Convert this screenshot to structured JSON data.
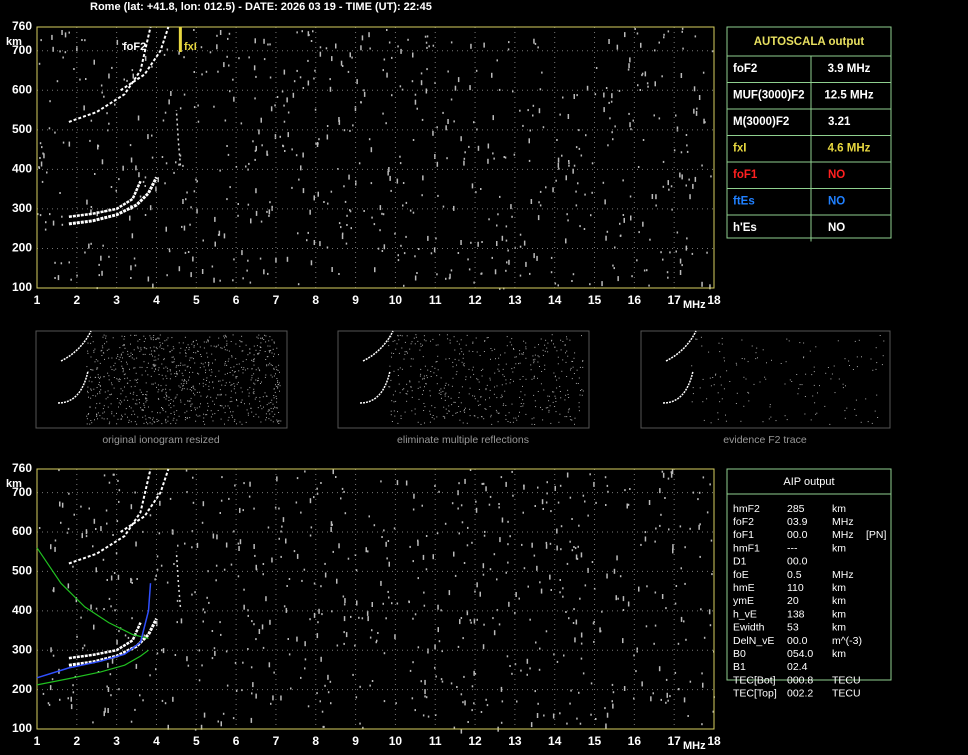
{
  "header": "Rome (lat: +41.8, lon: 012.5) - DATE: 2026 03 19 - TIME (UT): 22:45",
  "top_plot": {
    "y_unit": "km",
    "x_unit": "MHz",
    "xlim": [
      1,
      18
    ],
    "ylim": [
      100,
      760
    ],
    "xticks": [
      1,
      2,
      3,
      4,
      5,
      6,
      7,
      8,
      9,
      10,
      11,
      12,
      13,
      14,
      15,
      16,
      17,
      18
    ],
    "yticks": [
      100,
      200,
      300,
      400,
      500,
      600,
      700,
      760
    ],
    "labels": [
      "foF2",
      "fxI"
    ],
    "grid": true
  },
  "autoscala": {
    "title": "AUTOSCALA output",
    "rows": [
      {
        "name": "foF2",
        "value": "3.9 MHz",
        "color": "#ffffff"
      },
      {
        "name": "MUF(3000)F2",
        "value": "12.5 MHz",
        "color": "#ffffff"
      },
      {
        "name": "M(3000)F2",
        "value": "3.21",
        "color": "#ffffff"
      },
      {
        "name": "fxI",
        "value": "4.6 MHz",
        "color": "#e8d840"
      },
      {
        "name": "foF1",
        "value": "NO",
        "color": "#ff2020"
      },
      {
        "name": "ftEs",
        "value": "NO",
        "color": "#2080ff"
      },
      {
        "name": "h'Es",
        "value": "NO",
        "color": "#ffffff"
      }
    ]
  },
  "thumbnails": [
    "original ionogram resized",
    "eliminate multiple reflections",
    "evidence F2 trace"
  ],
  "bottom_plot": {
    "y_unit": "km",
    "x_unit": "MHz",
    "xlim": [
      1,
      18
    ],
    "ylim": [
      100,
      760
    ],
    "xticks": [
      1,
      2,
      3,
      4,
      5,
      6,
      7,
      8,
      9,
      10,
      11,
      12,
      13,
      14,
      15,
      16,
      17,
      18
    ],
    "yticks": [
      100,
      200,
      300,
      400,
      500,
      600,
      700,
      760
    ],
    "grid": true
  },
  "aip": {
    "title": "AIP output",
    "rows": [
      [
        "hmF2",
        "285",
        "km"
      ],
      [
        "foF2",
        "03.9",
        "MHz"
      ],
      [
        "foF1",
        "00.0",
        "MHz",
        "[PN]"
      ],
      [
        "hmF1",
        "---",
        "km"
      ],
      [
        "D1",
        "00.0"
      ],
      [
        "foE",
        "0.5",
        "MHz"
      ],
      [
        "hmE",
        "110",
        "km"
      ],
      [
        "ymE",
        "20",
        "km"
      ],
      [
        "h_vE",
        "138",
        "km"
      ],
      [
        "Ewidth",
        "53",
        "km"
      ],
      [
        "DelN_vE",
        "00.0",
        "m^(-3)"
      ],
      [
        "B0",
        "054.0",
        "km"
      ],
      [
        "B1",
        "02.4"
      ],
      [
        "TEC[Bot]",
        "000.8",
        "TECU"
      ],
      [
        "TEC[Top]",
        "002.2",
        "TECU"
      ]
    ]
  }
}
